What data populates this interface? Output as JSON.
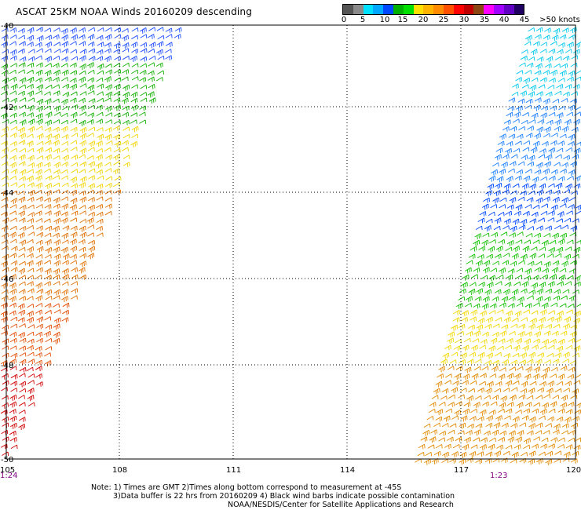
{
  "title": "ASCAT 25KM NOAA Winds 20160209 descending",
  "legend": {
    "colors": [
      "#555555",
      "#8a8a8a",
      "#00e1ff",
      "#00a8ff",
      "#0048ff",
      "#00b000",
      "#00e000",
      "#ffe000",
      "#ffb400",
      "#ff8c00",
      "#ff5000",
      "#ff0000",
      "#c00000",
      "#8b4513",
      "#ff00ff",
      "#a000ff",
      "#6000c0",
      "#200060"
    ],
    "ticks": [
      "0",
      "5",
      "10",
      "15",
      "20",
      "25",
      "30",
      "35",
      "40",
      "45",
      ">50 knots"
    ]
  },
  "map": {
    "x_ticks": [
      "105",
      "108",
      "111",
      "114",
      "117",
      "120"
    ],
    "y_ticks": [
      "-40",
      "-42",
      "-44",
      "-46",
      "-48",
      "-50"
    ],
    "swath_times": [
      "1:24",
      "1:23"
    ]
  },
  "notes": [
    "Note: 1) Times are GMT 2)Times along bottom correspond to measurement at -45S",
    "3)Data buffer is 22 hrs from 20160209 4) Black wind barbs indicate possible contamination",
    "NOAA/NESDIS/Center for Satellite Applications and Research"
  ]
}
